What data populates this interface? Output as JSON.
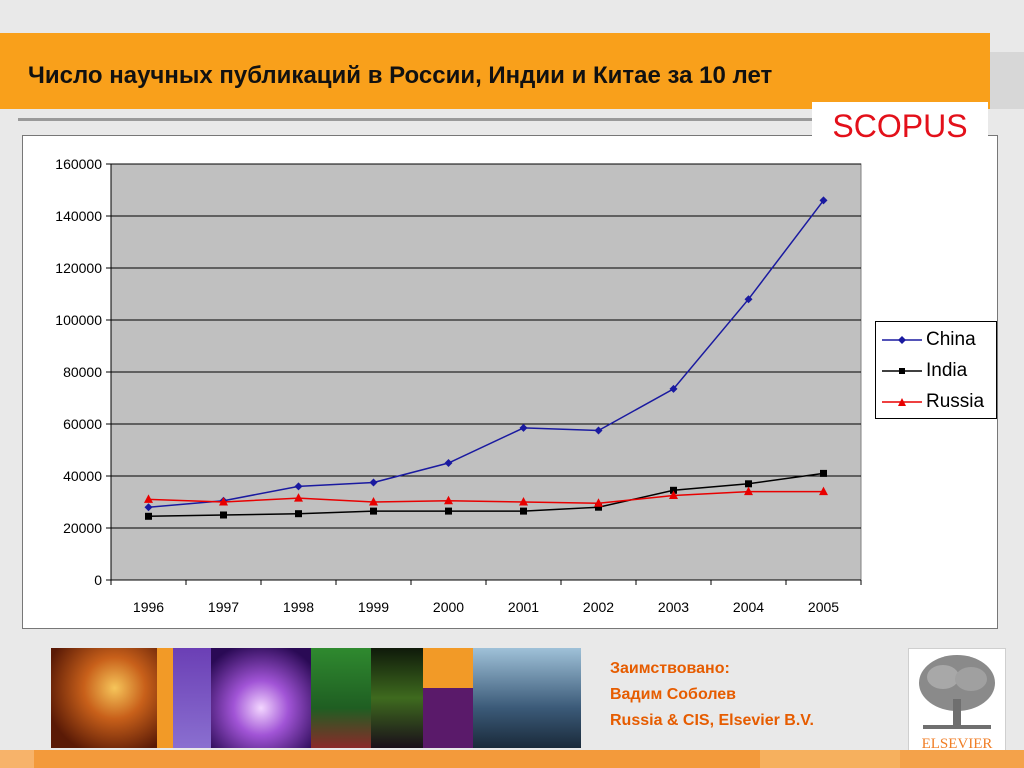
{
  "slide": {
    "title": "Число научных публикаций в России, Индии и Китае за 10 лет",
    "badge": "SCOPUS",
    "credit_lines": [
      "Заимствовано:",
      "Вадим Соболев",
      "Russia & CIS, Elsevier B.V."
    ],
    "logo_text": "ELSEVIER"
  },
  "colors": {
    "china": "#1a1aa0",
    "india": "#000000",
    "russia": "#e80000",
    "plot_bg": "#c0c0c0",
    "accent": "#f9a01b"
  },
  "chart_data": {
    "type": "line",
    "categories": [
      "1996",
      "1997",
      "1998",
      "1999",
      "2000",
      "2001",
      "2002",
      "2003",
      "2004",
      "2005"
    ],
    "yticks": [
      "0",
      "20000",
      "40000",
      "60000",
      "80000",
      "100000",
      "120000",
      "140000",
      "160000"
    ],
    "ylim": [
      0,
      160000
    ],
    "grid": true,
    "legend_position": "right",
    "series": [
      {
        "name": "China",
        "marker": "diamond",
        "values": [
          28000,
          30500,
          36000,
          37500,
          45000,
          58500,
          57500,
          73500,
          108000,
          146000
        ]
      },
      {
        "name": "India",
        "marker": "square",
        "values": [
          24500,
          25000,
          25500,
          26500,
          26500,
          26500,
          28000,
          34500,
          37000,
          41000
        ]
      },
      {
        "name": "Russia",
        "marker": "triangle",
        "values": [
          31000,
          30000,
          31500,
          30000,
          30500,
          30000,
          29500,
          32500,
          34000,
          34000
        ]
      }
    ]
  }
}
